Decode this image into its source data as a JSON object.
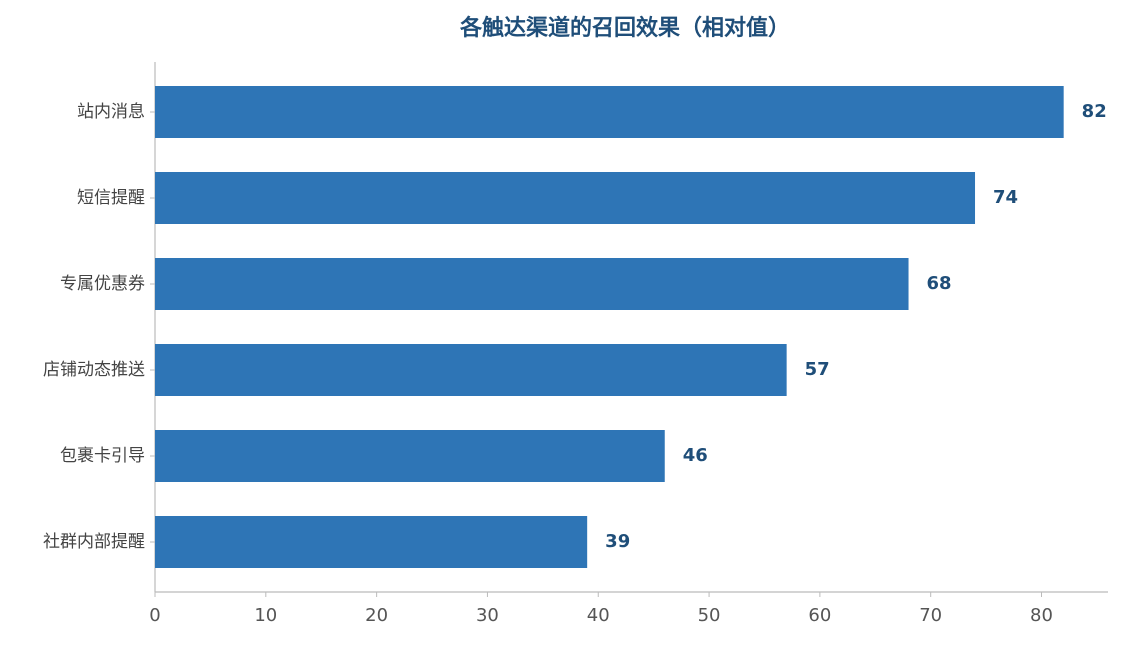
{
  "chart_data": {
    "type": "hbar",
    "title": "各触达渠道的召回效果（相对值）",
    "categories": [
      "站内消息",
      "短信提醒",
      "专属优惠券",
      "店铺动态推送",
      "包裹卡引导",
      "社群内部提醒"
    ],
    "values": [
      82,
      74,
      68,
      57,
      46,
      39
    ],
    "color": "#2e75b6",
    "label_color": "#1f4e79",
    "xlim": [
      0,
      86
    ],
    "xticks": [
      0,
      10,
      20,
      30,
      40,
      50,
      60,
      70,
      80
    ],
    "grid": false
  }
}
